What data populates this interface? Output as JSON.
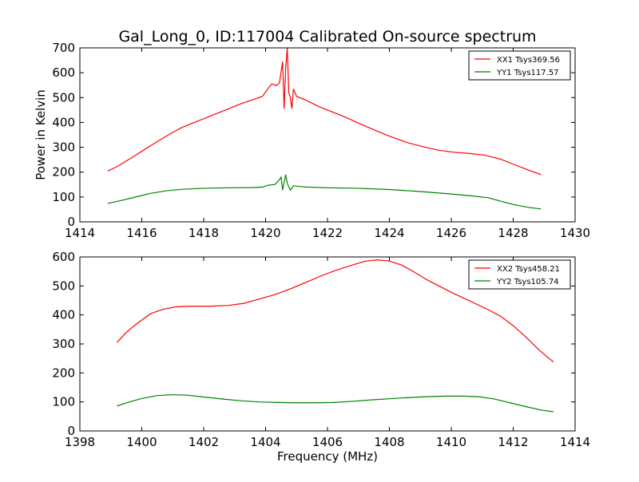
{
  "chart_data": [
    {
      "type": "line",
      "title": "Gal_Long_0, ID:117004 Calibrated On-source spectrum",
      "xlabel": "",
      "ylabel": "Power in Kelvin",
      "xlim": [
        1414,
        1430
      ],
      "ylim": [
        0,
        700
      ],
      "xticks": [
        1414,
        1416,
        1418,
        1420,
        1422,
        1424,
        1426,
        1428,
        1430
      ],
      "yticks": [
        0,
        100,
        200,
        300,
        400,
        500,
        600,
        700
      ],
      "grid": false,
      "legend_position": "top-right",
      "series": [
        {
          "name": "XX1 Tsys369.56",
          "color": "#ff0000",
          "points": [
            [
              1414.9,
              205
            ],
            [
              1415.2,
              222
            ],
            [
              1415.5,
              245
            ],
            [
              1415.8,
              268
            ],
            [
              1416.1,
              292
            ],
            [
              1416.4,
              315
            ],
            [
              1416.7,
              338
            ],
            [
              1417.0,
              360
            ],
            [
              1417.3,
              380
            ],
            [
              1417.6,
              395
            ],
            [
              1418.0,
              415
            ],
            [
              1418.4,
              435
            ],
            [
              1418.8,
              455
            ],
            [
              1419.2,
              475
            ],
            [
              1419.6,
              492
            ],
            [
              1419.9,
              505
            ],
            [
              1420.1,
              540
            ],
            [
              1420.2,
              555
            ],
            [
              1420.35,
              548
            ],
            [
              1420.45,
              560
            ],
            [
              1420.55,
              645
            ],
            [
              1420.6,
              455
            ],
            [
              1420.65,
              620
            ],
            [
              1420.7,
              700
            ],
            [
              1420.75,
              520
            ],
            [
              1420.8,
              500
            ],
            [
              1420.85,
              455
            ],
            [
              1420.9,
              535
            ],
            [
              1421.0,
              505
            ],
            [
              1421.3,
              490
            ],
            [
              1421.7,
              465
            ],
            [
              1422.1,
              445
            ],
            [
              1422.6,
              420
            ],
            [
              1423.1,
              392
            ],
            [
              1423.6,
              365
            ],
            [
              1424.1,
              340
            ],
            [
              1424.6,
              318
            ],
            [
              1425.1,
              302
            ],
            [
              1425.6,
              288
            ],
            [
              1426.1,
              280
            ],
            [
              1426.6,
              275
            ],
            [
              1427.1,
              268
            ],
            [
              1427.6,
              252
            ],
            [
              1428.0,
              232
            ],
            [
              1428.5,
              208
            ],
            [
              1428.9,
              190
            ]
          ]
        },
        {
          "name": "YY1 Tsys117.57",
          "color": "#008000",
          "points": [
            [
              1414.9,
              74
            ],
            [
              1415.3,
              85
            ],
            [
              1415.8,
              100
            ],
            [
              1416.3,
              115
            ],
            [
              1416.8,
              125
            ],
            [
              1417.3,
              131
            ],
            [
              1418.0,
              135
            ],
            [
              1418.8,
              137
            ],
            [
              1419.6,
              138
            ],
            [
              1419.9,
              140
            ],
            [
              1420.1,
              148
            ],
            [
              1420.3,
              150
            ],
            [
              1420.45,
              170
            ],
            [
              1420.5,
              180
            ],
            [
              1420.55,
              128
            ],
            [
              1420.65,
              190
            ],
            [
              1420.7,
              155
            ],
            [
              1420.8,
              128
            ],
            [
              1420.9,
              145
            ],
            [
              1421.3,
              140
            ],
            [
              1422.0,
              137
            ],
            [
              1423.0,
              135
            ],
            [
              1424.0,
              130
            ],
            [
              1425.0,
              122
            ],
            [
              1426.0,
              112
            ],
            [
              1426.7,
              104
            ],
            [
              1427.2,
              97
            ],
            [
              1427.6,
              83
            ],
            [
              1428.0,
              70
            ],
            [
              1428.5,
              58
            ],
            [
              1428.9,
              52
            ]
          ]
        }
      ]
    },
    {
      "type": "line",
      "title": "",
      "xlabel": "Frequency (MHz)",
      "ylabel": "",
      "xlim": [
        1398,
        1414
      ],
      "ylim": [
        0,
        600
      ],
      "xticks": [
        1398,
        1400,
        1402,
        1404,
        1406,
        1408,
        1410,
        1412,
        1414
      ],
      "yticks": [
        0,
        100,
        200,
        300,
        400,
        500,
        600
      ],
      "grid": false,
      "legend_position": "top-right",
      "series": [
        {
          "name": "XX2 Tsys458.21",
          "color": "#ff0000",
          "points": [
            [
              1399.2,
              305
            ],
            [
              1399.5,
              340
            ],
            [
              1399.9,
              375
            ],
            [
              1400.3,
              405
            ],
            [
              1400.7,
              420
            ],
            [
              1401.1,
              428
            ],
            [
              1401.6,
              430
            ],
            [
              1402.2,
              430
            ],
            [
              1402.8,
              433
            ],
            [
              1403.3,
              440
            ],
            [
              1403.8,
              455
            ],
            [
              1404.3,
              470
            ],
            [
              1404.8,
              490
            ],
            [
              1405.3,
              512
            ],
            [
              1405.8,
              535
            ],
            [
              1406.3,
              555
            ],
            [
              1406.8,
              572
            ],
            [
              1407.2,
              585
            ],
            [
              1407.6,
              590
            ],
            [
              1408.0,
              586
            ],
            [
              1408.4,
              572
            ],
            [
              1408.8,
              548
            ],
            [
              1409.2,
              522
            ],
            [
              1409.6,
              500
            ],
            [
              1410.0,
              478
            ],
            [
              1410.4,
              458
            ],
            [
              1410.8,
              438
            ],
            [
              1411.2,
              418
            ],
            [
              1411.6,
              395
            ],
            [
              1412.0,
              363
            ],
            [
              1412.4,
              325
            ],
            [
              1412.8,
              283
            ],
            [
              1413.1,
              255
            ],
            [
              1413.3,
              238
            ]
          ]
        },
        {
          "name": "YY2 Tsys105.74",
          "color": "#008000",
          "points": [
            [
              1399.2,
              86
            ],
            [
              1399.6,
              100
            ],
            [
              1400.0,
              112
            ],
            [
              1400.5,
              122
            ],
            [
              1401.0,
              125
            ],
            [
              1401.5,
              123
            ],
            [
              1402.0,
              117
            ],
            [
              1402.6,
              110
            ],
            [
              1403.2,
              104
            ],
            [
              1403.8,
              100
            ],
            [
              1404.4,
              98
            ],
            [
              1405.0,
              97
            ],
            [
              1405.6,
              97
            ],
            [
              1406.2,
              98
            ],
            [
              1406.8,
              102
            ],
            [
              1407.4,
              107
            ],
            [
              1408.0,
              111
            ],
            [
              1408.6,
              115
            ],
            [
              1409.2,
              118
            ],
            [
              1409.8,
              120
            ],
            [
              1410.4,
              120
            ],
            [
              1410.9,
              118
            ],
            [
              1411.4,
              110
            ],
            [
              1411.9,
              97
            ],
            [
              1412.4,
              84
            ],
            [
              1412.9,
              72
            ],
            [
              1413.3,
              66
            ]
          ]
        }
      ]
    }
  ]
}
